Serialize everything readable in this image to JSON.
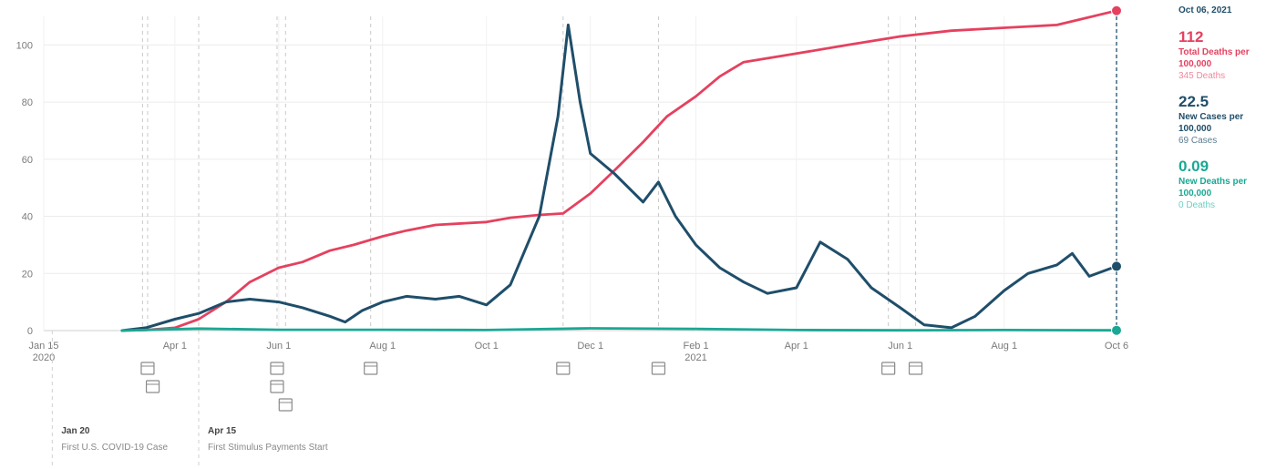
{
  "chart_data": {
    "type": "line",
    "title": "",
    "xlabel": "",
    "ylabel": "",
    "ylim": [
      0,
      110
    ],
    "grid": true,
    "y_ticks": [
      0,
      20,
      40,
      60,
      80,
      100
    ],
    "x_ticks": [
      {
        "date": "2020-01-15",
        "label": "Jan 15",
        "sublabel": "2020"
      },
      {
        "date": "2020-04-01",
        "label": "Apr 1"
      },
      {
        "date": "2020-06-01",
        "label": "Jun 1"
      },
      {
        "date": "2020-08-01",
        "label": "Aug 1"
      },
      {
        "date": "2020-10-01",
        "label": "Oct 1"
      },
      {
        "date": "2020-12-01",
        "label": "Dec 1"
      },
      {
        "date": "2021-02-01",
        "label": "Feb 1",
        "sublabel": "2021"
      },
      {
        "date": "2021-04-01",
        "label": "Apr 1"
      },
      {
        "date": "2021-06-01",
        "label": "Jun 1"
      },
      {
        "date": "2021-08-01",
        "label": "Aug 1"
      },
      {
        "date": "2021-10-06",
        "label": "Oct 6"
      }
    ],
    "x_range": [
      "2020-01-15",
      "2021-10-06"
    ],
    "series": [
      {
        "name": "Total Deaths per 100,000",
        "color": "#e5415f",
        "points": [
          [
            "2020-03-01",
            0
          ],
          [
            "2020-03-15",
            0.2
          ],
          [
            "2020-04-01",
            1
          ],
          [
            "2020-04-15",
            4
          ],
          [
            "2020-05-01",
            10
          ],
          [
            "2020-05-15",
            17
          ],
          [
            "2020-06-01",
            22
          ],
          [
            "2020-06-15",
            24
          ],
          [
            "2020-07-01",
            28
          ],
          [
            "2020-07-15",
            30
          ],
          [
            "2020-08-01",
            33
          ],
          [
            "2020-08-15",
            35
          ],
          [
            "2020-09-01",
            37
          ],
          [
            "2020-10-01",
            38
          ],
          [
            "2020-10-15",
            39.5
          ],
          [
            "2020-11-01",
            40.5
          ],
          [
            "2020-11-15",
            41
          ],
          [
            "2020-12-01",
            48
          ],
          [
            "2020-12-15",
            56
          ],
          [
            "2021-01-01",
            66
          ],
          [
            "2021-01-15",
            75
          ],
          [
            "2021-02-01",
            82
          ],
          [
            "2021-02-15",
            89
          ],
          [
            "2021-03-01",
            94
          ],
          [
            "2021-04-01",
            97
          ],
          [
            "2021-05-01",
            100
          ],
          [
            "2021-06-01",
            103
          ],
          [
            "2021-07-01",
            105
          ],
          [
            "2021-08-01",
            106
          ],
          [
            "2021-09-01",
            107
          ],
          [
            "2021-09-15",
            109
          ],
          [
            "2021-10-06",
            112
          ]
        ]
      },
      {
        "name": "New Cases per 100,000",
        "color": "#1f4e6a",
        "points": [
          [
            "2020-03-01",
            0
          ],
          [
            "2020-03-15",
            1
          ],
          [
            "2020-04-01",
            4
          ],
          [
            "2020-04-15",
            6
          ],
          [
            "2020-05-01",
            10
          ],
          [
            "2020-05-15",
            11
          ],
          [
            "2020-06-01",
            10
          ],
          [
            "2020-06-15",
            8
          ],
          [
            "2020-07-01",
            5
          ],
          [
            "2020-07-10",
            3
          ],
          [
            "2020-07-20",
            7
          ],
          [
            "2020-08-01",
            10
          ],
          [
            "2020-08-15",
            12
          ],
          [
            "2020-09-01",
            11
          ],
          [
            "2020-09-15",
            12
          ],
          [
            "2020-10-01",
            9
          ],
          [
            "2020-10-15",
            16
          ],
          [
            "2020-11-01",
            40
          ],
          [
            "2020-11-12",
            75
          ],
          [
            "2020-11-18",
            107
          ],
          [
            "2020-11-25",
            80
          ],
          [
            "2020-12-01",
            62
          ],
          [
            "2020-12-15",
            55
          ],
          [
            "2021-01-01",
            45
          ],
          [
            "2021-01-10",
            52
          ],
          [
            "2021-01-20",
            40
          ],
          [
            "2021-02-01",
            30
          ],
          [
            "2021-02-15",
            22
          ],
          [
            "2021-03-01",
            17
          ],
          [
            "2021-03-15",
            13
          ],
          [
            "2021-04-01",
            15
          ],
          [
            "2021-04-15",
            31
          ],
          [
            "2021-05-01",
            25
          ],
          [
            "2021-05-15",
            15
          ],
          [
            "2021-06-01",
            8
          ],
          [
            "2021-06-15",
            2
          ],
          [
            "2021-07-01",
            1
          ],
          [
            "2021-07-15",
            5
          ],
          [
            "2021-08-01",
            14
          ],
          [
            "2021-08-15",
            20
          ],
          [
            "2021-09-01",
            23
          ],
          [
            "2021-09-10",
            27
          ],
          [
            "2021-09-20",
            19
          ],
          [
            "2021-10-06",
            22.5
          ]
        ]
      },
      {
        "name": "New Deaths per 100,000",
        "color": "#1aa894",
        "points": [
          [
            "2020-03-01",
            0
          ],
          [
            "2020-04-15",
            0.7
          ],
          [
            "2020-06-01",
            0.3
          ],
          [
            "2020-08-01",
            0.3
          ],
          [
            "2020-10-01",
            0.2
          ],
          [
            "2020-12-01",
            0.8
          ],
          [
            "2021-02-01",
            0.6
          ],
          [
            "2021-04-01",
            0.2
          ],
          [
            "2021-06-01",
            0.1
          ],
          [
            "2021-08-01",
            0.2
          ],
          [
            "2021-10-06",
            0.09
          ]
        ]
      }
    ],
    "event_lines": [
      "2020-03-13",
      "2020-03-16",
      "2020-04-15",
      "2020-05-31",
      "2020-06-05",
      "2020-07-25",
      "2020-11-15",
      "2021-01-10",
      "2021-05-25",
      "2021-06-10"
    ],
    "annotations": [
      {
        "date": "2020-01-20",
        "label_date": "Jan 20",
        "text": "First U.S. COVID-19 Case"
      },
      {
        "date": "2020-04-15",
        "label_date": "Apr 15",
        "text": "First Stimulus Payments Start"
      }
    ]
  },
  "panel": {
    "date": "Oct 06, 2021",
    "total_deaths": {
      "value": "112",
      "label": "Total Deaths per 100,000",
      "sub": "345 Deaths"
    },
    "new_cases": {
      "value": "22.5",
      "label": "New Cases per 100,000",
      "sub": "69 Cases"
    },
    "new_deaths": {
      "value": "0.09",
      "label": "New Deaths per 100,000",
      "sub": "0 Deaths"
    }
  }
}
